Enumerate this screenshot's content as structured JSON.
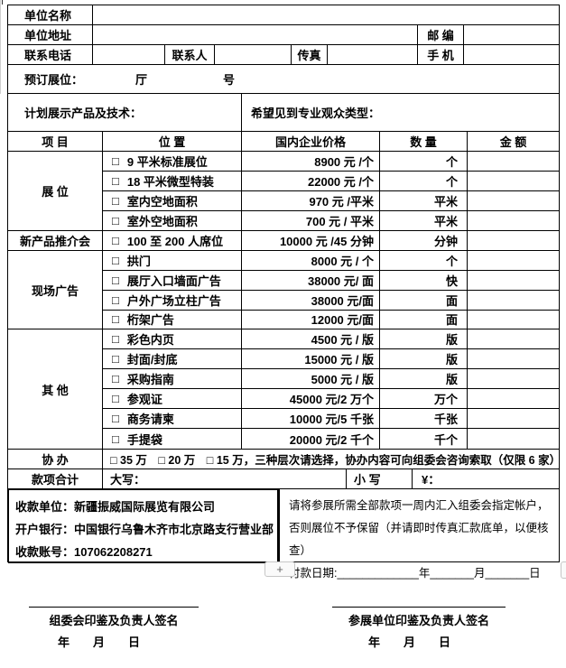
{
  "top": {
    "unit_name_label": "单位名称",
    "unit_address_label": "单位地址",
    "postal_label": "邮  编",
    "phone_label": "联系电话",
    "contact_label": "联系人",
    "fax_label": "传真",
    "mobile_label": "手  机",
    "booking_label": "预订展位：",
    "hall_label": "厅",
    "number_label": "号",
    "plan_label": "计划展示产品及技术：",
    "audience_label": "希望见到专业观众类型："
  },
  "price_table": {
    "checkbox": "□",
    "columns": [
      "项  目",
      "位  置",
      "国内企业价格",
      "数  量",
      "金  额"
    ],
    "groups": [
      {
        "label": "展  位"
      },
      {
        "label": "新产品推介会"
      },
      {
        "label": "现场广告"
      },
      {
        "label": "其  他"
      }
    ],
    "rows": [
      {
        "item": "9 平米标准展位",
        "price": "8900 元 /个",
        "unit": "个"
      },
      {
        "item": "18 平米微型特装",
        "price": "22000 元 /个",
        "unit": "个"
      },
      {
        "item": "室内空地面积",
        "price": "970 元 /平米",
        "unit": "平米"
      },
      {
        "item": "室外空地面积",
        "price": "700 元 / 平米",
        "unit": "平米"
      },
      {
        "item": "100 至 200 人席位",
        "price": "10000 元 /45 分钟",
        "unit": "分钟"
      },
      {
        "item": "拱门",
        "price": "8000 元 / 个",
        "unit": "个"
      },
      {
        "item": "展厅入口墙面广告",
        "price": "38000 元/ 面",
        "unit": "快"
      },
      {
        "item": "户外广场立柱广告",
        "price": "38000 元/面",
        "unit": "面"
      },
      {
        "item": "桁架广告",
        "price": "12000 元/面",
        "unit": "面"
      },
      {
        "item": "彩色内页",
        "price": "4500 元 / 版",
        "unit": "版"
      },
      {
        "item": "封面/封底",
        "price": "15000 元 / 版",
        "unit": "版"
      },
      {
        "item": "采购指南",
        "price": "5000 元 / 版",
        "unit": "版"
      },
      {
        "item": "参观证",
        "price": "45000 元/2 万个",
        "unit": "万个"
      },
      {
        "item": "商务请柬",
        "price": "10000 元/5 千张",
        "unit": "千张"
      },
      {
        "item": "手提袋",
        "price": "20000 元/2 千个",
        "unit": "千个"
      }
    ],
    "cohost_label": "协  办",
    "cohost_content": "□ 35 万　□ 20 万　□ 15 万，三种层次请选择，协办内容可向组委会咨询索取（仅限 6 家）",
    "total_label": "款项合计",
    "total_daxie": "大写：",
    "total_xiaoxie": "小 写",
    "total_yuan": "¥："
  },
  "payment": {
    "bank_lines": [
      "收款单位：新疆振威国际展览有限公司",
      "开户银行：中国银行乌鲁木齐市北京路支行营业部",
      "收款账号：107062208271"
    ],
    "notice_lines": [
      "请将参展所需全部款项一周内汇入组委会指定帐户，",
      "否则展位不予保留（并请即时传真汇款底单，以便核查）",
      "付款日期:_____________年_______月_______日"
    ]
  },
  "signatures": {
    "left_title": "组委会印鉴及负责人签名",
    "left_date": "年　　月　　日",
    "right_title": "参展单位印鉴及负责人签名",
    "right_date": "年　　月　　日"
  },
  "controls": {
    "add_row_button": "+"
  },
  "colors": {
    "border": "#000000",
    "button_border": "#c6c6c6",
    "button_bg": "#fafafa"
  }
}
